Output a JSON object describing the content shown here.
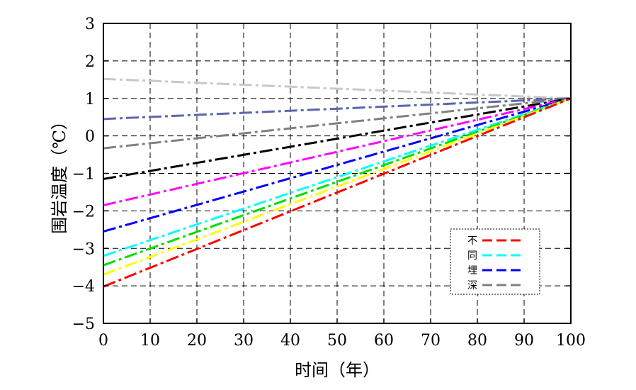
{
  "chart_data": {
    "type": "line",
    "xlabel": "时间（年）",
    "ylabel": "围岩温度（℃）",
    "xlim": [
      0,
      100
    ],
    "ylim": [
      -5,
      3
    ],
    "x_ticks": [
      "0",
      "10",
      "20",
      "30",
      "40",
      "50",
      "60",
      "70",
      "80",
      "90",
      "100"
    ],
    "y_ticks": [
      "3",
      "2",
      "1",
      "0",
      "−1",
      "−2",
      "−3",
      "−4",
      "−5"
    ],
    "grid": true,
    "legend_position": "bottom-right",
    "legend_labels": [
      "不",
      "同",
      "埋",
      "深"
    ],
    "legend_colors": [
      "#ff0000",
      "#00ffff",
      "#0000ff",
      "#808080"
    ],
    "series": [
      {
        "color": "#c8c8c8",
        "x": [
          0,
          100
        ],
        "y": [
          1.52,
          1.0
        ]
      },
      {
        "color": "#5b66b0",
        "x": [
          0,
          100
        ],
        "y": [
          0.45,
          1.0
        ]
      },
      {
        "color": "#808080",
        "x": [
          0,
          100
        ],
        "y": [
          -0.33,
          1.0
        ]
      },
      {
        "color": "#000000",
        "x": [
          0,
          100
        ],
        "y": [
          -1.15,
          1.0
        ]
      },
      {
        "color": "#ff00ff",
        "x": [
          0,
          100
        ],
        "y": [
          -1.85,
          1.0
        ]
      },
      {
        "color": "#0000ff",
        "x": [
          0,
          100
        ],
        "y": [
          -2.55,
          1.0
        ]
      },
      {
        "color": "#00ffff",
        "x": [
          0,
          100
        ],
        "y": [
          -3.2,
          1.0
        ]
      },
      {
        "color": "#00dd00",
        "x": [
          0,
          100
        ],
        "y": [
          -3.45,
          1.0
        ]
      },
      {
        "color": "#ffff00",
        "x": [
          0,
          100
        ],
        "y": [
          -3.7,
          1.0
        ]
      },
      {
        "color": "#ff0000",
        "x": [
          0,
          100
        ],
        "y": [
          -4.02,
          1.0
        ]
      }
    ]
  }
}
